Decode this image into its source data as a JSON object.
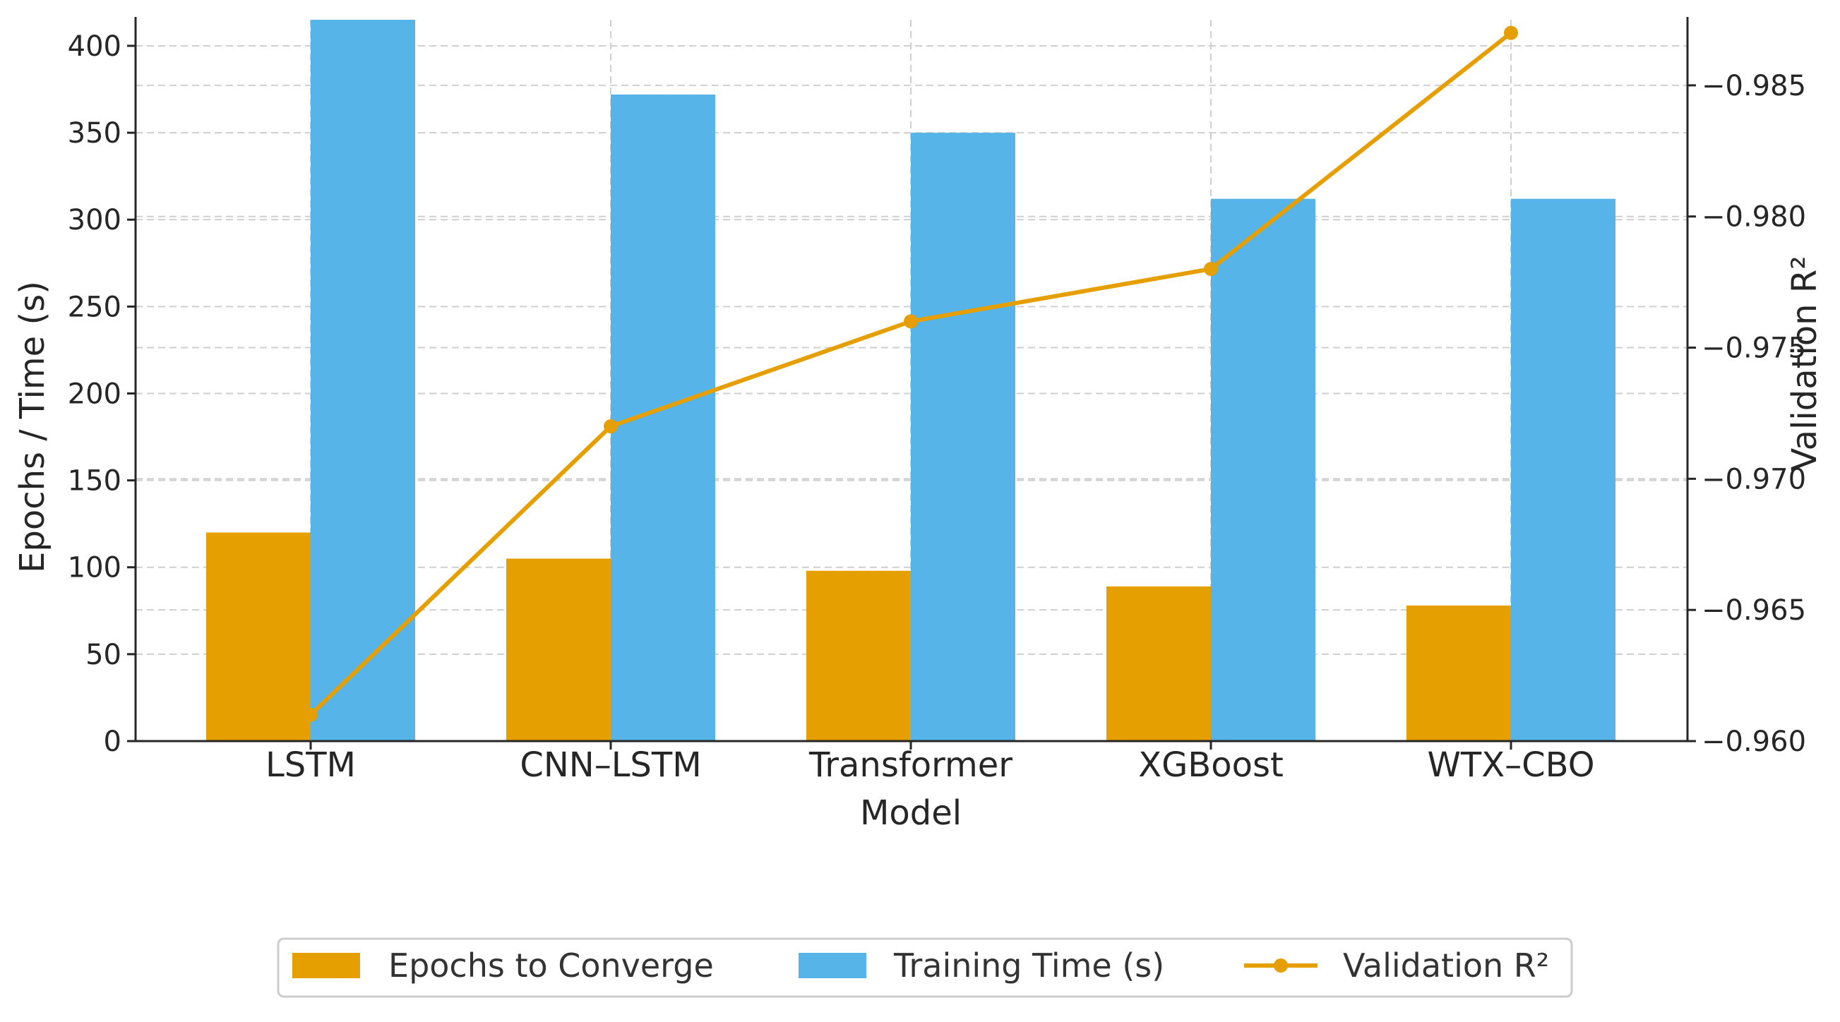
{
  "chart_data": {
    "type": "bar",
    "xlabel": "Model",
    "ylabel": "Epochs / Time (s)",
    "ylabel_right": "Validation R²",
    "categories": [
      "LSTM",
      "CNN–LSTM",
      "Transformer",
      "XGBoost",
      "WTX–CBO"
    ],
    "series": [
      {
        "name": "Epochs to Converge",
        "kind": "bar",
        "axis": "left",
        "color": "#E69F00",
        "values": [
          120,
          105,
          98,
          89,
          78
        ]
      },
      {
        "name": "Training Time (s)",
        "kind": "bar",
        "axis": "left",
        "color": "#56B4E9",
        "values": [
          415,
          372,
          350,
          312,
          312
        ]
      },
      {
        "name": "Validation R²",
        "kind": "line",
        "marker": "circle",
        "axis": "right",
        "color": "#E69F00",
        "values": [
          0.961,
          0.972,
          0.976,
          0.978,
          0.987
        ]
      }
    ],
    "ylim": [
      0,
      415
    ],
    "ylim_right": [
      0.96,
      0.9875
    ],
    "yticks": [
      0,
      50,
      100,
      150,
      200,
      250,
      300,
      350,
      400
    ],
    "yticks_right": [
      0.96,
      0.965,
      0.97,
      0.975,
      0.98,
      0.985
    ],
    "ytick_labels_right": [
      "0.960",
      "0.965",
      "0.970",
      "0.975",
      "0.980",
      "0.985"
    ],
    "grid": true,
    "legend_position": "bottom-center"
  }
}
